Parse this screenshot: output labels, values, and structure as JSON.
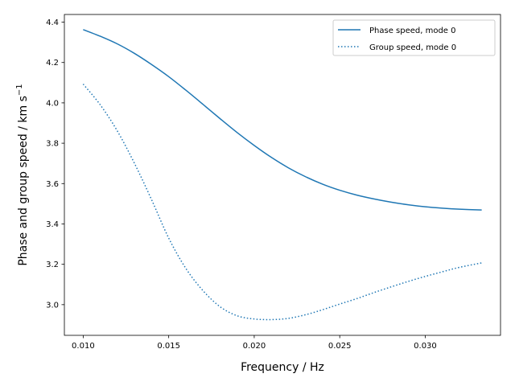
{
  "chart_data": {
    "type": "line",
    "xlabel": "Frequency / Hz",
    "ylabel": "Phase and group speed / km s",
    "ylabel_superscript": "−1",
    "xlim": [
      0.0089,
      0.0344
    ],
    "ylim": [
      2.848,
      4.438
    ],
    "xticks": [
      0.01,
      0.015,
      0.02,
      0.025,
      0.03
    ],
    "xtick_labels": [
      "0.010",
      "0.015",
      "0.020",
      "0.025",
      "0.030"
    ],
    "yticks": [
      3.0,
      3.2,
      3.4,
      3.6,
      3.8,
      4.0,
      4.2,
      4.4
    ],
    "ytick_labels": [
      "3.0",
      "3.2",
      "3.4",
      "3.6",
      "3.8",
      "4.0",
      "4.2",
      "4.4"
    ],
    "grid": false,
    "legend_position": "top-right",
    "series": [
      {
        "name": "Phase speed, mode 0",
        "style": "solid",
        "color": "#1f77b4",
        "x": [
          0.01,
          0.011,
          0.012,
          0.013,
          0.014,
          0.015,
          0.016,
          0.017,
          0.018,
          0.019,
          0.02,
          0.021,
          0.022,
          0.023,
          0.024,
          0.025,
          0.026,
          0.027,
          0.028,
          0.029,
          0.03,
          0.031,
          0.032,
          0.0333
        ],
        "y": [
          4.363,
          4.33,
          4.292,
          4.245,
          4.19,
          4.13,
          4.063,
          3.993,
          3.922,
          3.853,
          3.789,
          3.73,
          3.678,
          3.634,
          3.597,
          3.567,
          3.543,
          3.524,
          3.508,
          3.495,
          3.485,
          3.478,
          3.473,
          3.469
        ]
      },
      {
        "name": "Group speed, mode 0",
        "style": "dotted",
        "color": "#1f77b4",
        "x": [
          0.01,
          0.011,
          0.012,
          0.013,
          0.014,
          0.015,
          0.016,
          0.017,
          0.018,
          0.019,
          0.02,
          0.021,
          0.022,
          0.023,
          0.024,
          0.025,
          0.026,
          0.027,
          0.028,
          0.029,
          0.03,
          0.031,
          0.032,
          0.0333
        ],
        "y": [
          4.093,
          3.99,
          3.86,
          3.7,
          3.52,
          3.33,
          3.18,
          3.07,
          2.99,
          2.945,
          2.929,
          2.926,
          2.932,
          2.95,
          2.975,
          3.003,
          3.03,
          3.06,
          3.088,
          3.115,
          3.14,
          3.163,
          3.185,
          3.207
        ]
      }
    ]
  }
}
